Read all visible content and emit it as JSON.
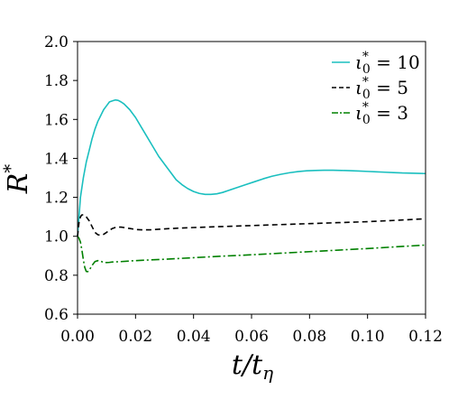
{
  "chart_data": {
    "type": "line",
    "xlabel": "t/t_η",
    "xlabel_main": "t/t",
    "xlabel_sub": "η",
    "ylabel": "R*",
    "ylabel_main": "R",
    "ylabel_sup": "*",
    "xlim": [
      0,
      0.12
    ],
    "ylim": [
      0.6,
      2.0
    ],
    "xticks": [
      0.0,
      0.02,
      0.04,
      0.06,
      0.08,
      0.1,
      0.12
    ],
    "xtick_labels": [
      "0.00",
      "0.02",
      "0.04",
      "0.06",
      "0.08",
      "0.10",
      "0.12"
    ],
    "yticks": [
      0.6,
      0.8,
      1.0,
      1.2,
      1.4,
      1.6,
      1.8,
      2.0
    ],
    "ytick_labels": [
      "0.6",
      "0.8",
      "1.0",
      "1.2",
      "1.4",
      "1.6",
      "1.8",
      "2.0"
    ],
    "grid": false,
    "legend_position": "top-right",
    "series": [
      {
        "name": "ι0* = 10",
        "legend_main": "ι",
        "legend_sub": "0",
        "legend_sup": "*",
        "legend_rest": " = 10",
        "color": "#1ABFBF",
        "dash": "solid",
        "x": [
          0,
          0.001,
          0.002,
          0.003,
          0.004,
          0.005,
          0.006,
          0.007,
          0.008,
          0.009,
          0.01,
          0.011,
          0.012,
          0.013,
          0.014,
          0.015,
          0.016,
          0.018,
          0.02,
          0.022,
          0.024,
          0.026,
          0.028,
          0.03,
          0.032,
          0.034,
          0.036,
          0.038,
          0.04,
          0.042,
          0.044,
          0.046,
          0.048,
          0.05,
          0.052,
          0.055,
          0.058,
          0.061,
          0.064,
          0.067,
          0.07,
          0.073,
          0.076,
          0.079,
          0.082,
          0.085,
          0.088,
          0.091,
          0.094,
          0.097,
          0.1,
          0.103,
          0.106,
          0.109,
          0.112,
          0.115,
          0.118,
          0.12
        ],
        "y": [
          1.0,
          1.2,
          1.3,
          1.38,
          1.44,
          1.5,
          1.55,
          1.59,
          1.62,
          1.65,
          1.67,
          1.69,
          1.695,
          1.7,
          1.698,
          1.69,
          1.68,
          1.65,
          1.61,
          1.56,
          1.51,
          1.46,
          1.41,
          1.37,
          1.33,
          1.29,
          1.265,
          1.245,
          1.23,
          1.22,
          1.215,
          1.215,
          1.218,
          1.225,
          1.235,
          1.25,
          1.265,
          1.28,
          1.295,
          1.308,
          1.318,
          1.326,
          1.332,
          1.336,
          1.338,
          1.339,
          1.339,
          1.338,
          1.337,
          1.335,
          1.333,
          1.331,
          1.329,
          1.327,
          1.325,
          1.324,
          1.323,
          1.322
        ]
      },
      {
        "name": "ι0* = 5",
        "legend_main": "ι",
        "legend_sub": "0",
        "legend_sup": "*",
        "legend_rest": " = 5",
        "color": "#000000",
        "dash": "dashed",
        "x": [
          0,
          0.0005,
          0.001,
          0.0015,
          0.002,
          0.003,
          0.004,
          0.005,
          0.006,
          0.007,
          0.008,
          0.009,
          0.01,
          0.011,
          0.012,
          0.013,
          0.014,
          0.015,
          0.016,
          0.018,
          0.02,
          0.022,
          0.025,
          0.03,
          0.035,
          0.04,
          0.05,
          0.06,
          0.07,
          0.08,
          0.09,
          0.1,
          0.11,
          0.12
        ],
        "y": [
          1.0,
          1.07,
          1.1,
          1.11,
          1.11,
          1.1,
          1.08,
          1.05,
          1.02,
          1.008,
          1.005,
          1.01,
          1.02,
          1.03,
          1.04,
          1.045,
          1.047,
          1.047,
          1.045,
          1.04,
          1.035,
          1.033,
          1.033,
          1.038,
          1.042,
          1.045,
          1.05,
          1.055,
          1.06,
          1.065,
          1.07,
          1.075,
          1.082,
          1.09
        ]
      },
      {
        "name": "ι0* = 3",
        "legend_main": "ι",
        "legend_sub": "0",
        "legend_sup": "*",
        "legend_rest": " = 3",
        "color": "#008000",
        "dash": "dashdot",
        "x": [
          0,
          0.0005,
          0.001,
          0.0015,
          0.002,
          0.0025,
          0.003,
          0.0035,
          0.004,
          0.005,
          0.006,
          0.007,
          0.008,
          0.009,
          0.01,
          0.011,
          0.012,
          0.015,
          0.02,
          0.03,
          0.04,
          0.05,
          0.06,
          0.07,
          0.08,
          0.09,
          0.1,
          0.11,
          0.12
        ],
        "y": [
          1.0,
          0.99,
          0.97,
          0.93,
          0.88,
          0.84,
          0.82,
          0.818,
          0.825,
          0.85,
          0.87,
          0.875,
          0.872,
          0.866,
          0.865,
          0.866,
          0.868,
          0.87,
          0.875,
          0.882,
          0.89,
          0.898,
          0.905,
          0.913,
          0.921,
          0.929,
          0.937,
          0.946,
          0.955
        ]
      }
    ]
  }
}
